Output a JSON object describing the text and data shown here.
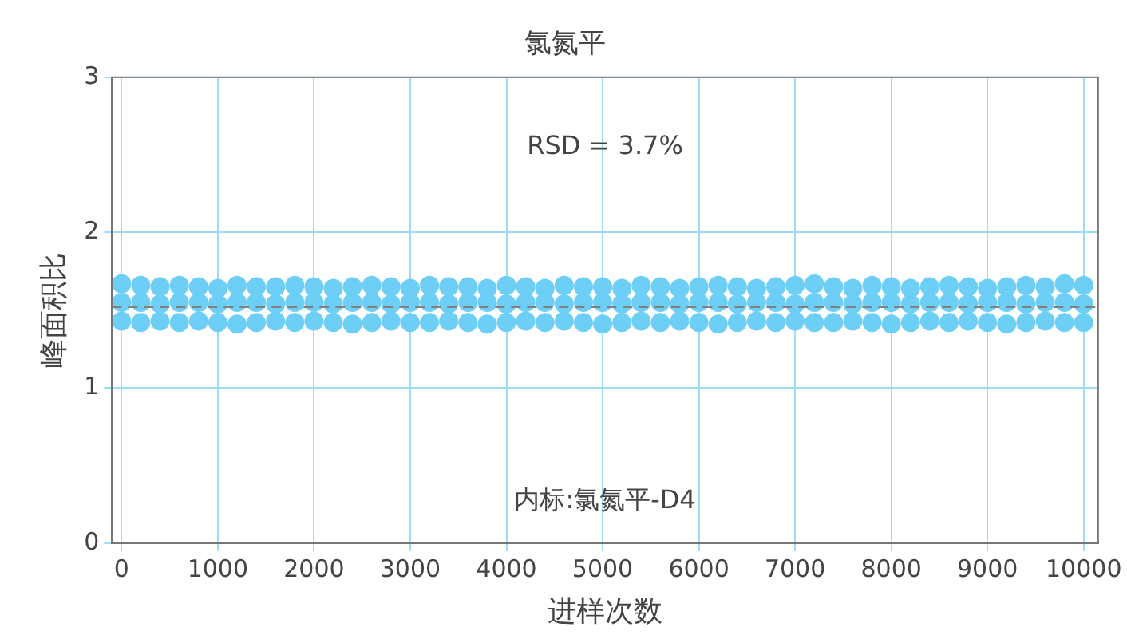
{
  "chart_data": {
    "type": "scatter",
    "title": "氯氮平",
    "xlabel": "进样次数",
    "ylabel": "峰面积比",
    "annotations": [
      "RSD = 3.7%",
      "内标:氯氮平-D4"
    ],
    "xlim": [
      -100,
      10150
    ],
    "xticks": [
      0,
      1000,
      2000,
      3000,
      4000,
      5000,
      6000,
      7000,
      8000,
      9000,
      10000
    ],
    "ylim": [
      0,
      3
    ],
    "yticks": [
      0,
      1,
      2,
      3
    ],
    "grid": true,
    "legend": false,
    "marker": "circle",
    "ref_lines": [
      {
        "axis": "y",
        "value": 1.52,
        "color": "#808080",
        "line_style": "dashed"
      }
    ],
    "series": [
      {
        "color": "#6dcff6",
        "x": [
          0,
          200,
          400,
          600,
          800,
          1000,
          1200,
          1400,
          1600,
          1800,
          2000,
          2200,
          2400,
          2600,
          2800,
          3000,
          3200,
          3400,
          3600,
          3800,
          4000,
          4200,
          4400,
          4600,
          4800,
          5000,
          5200,
          5400,
          5600,
          5800,
          6000,
          6200,
          6400,
          6600,
          6800,
          7000,
          7200,
          7400,
          7600,
          7800,
          8000,
          8200,
          8400,
          8600,
          8800,
          9000,
          9200,
          9400,
          9600,
          9800,
          10000,
          0,
          200,
          400,
          600,
          800,
          1000,
          1200,
          1400,
          1600,
          1800,
          2000,
          2200,
          2400,
          2600,
          2800,
          3000,
          3200,
          3400,
          3600,
          3800,
          4000,
          4200,
          4400,
          4600,
          4800,
          5000,
          5200,
          5400,
          5600,
          5800,
          6000,
          6200,
          6400,
          6600,
          6800,
          7000,
          7200,
          7400,
          7600,
          7800,
          8000,
          8200,
          8400,
          8600,
          8800,
          9000,
          9200,
          9400,
          9600,
          9800,
          10000,
          0,
          200,
          400,
          600,
          800,
          1000,
          1200,
          1400,
          1600,
          1800,
          2000,
          2200,
          2400,
          2600,
          2800,
          3000,
          3200,
          3400,
          3600,
          3800,
          4000,
          4200,
          4400,
          4600,
          4800,
          5000,
          5200,
          5400,
          5600,
          5800,
          6000,
          6200,
          6400,
          6600,
          6800,
          7000,
          7200,
          7400,
          7600,
          7800,
          8000,
          8200,
          8400,
          8600,
          8800,
          9000,
          9200,
          9400,
          9600,
          9800,
          10000
        ],
        "values": [
          1.67,
          1.66,
          1.65,
          1.66,
          1.65,
          1.64,
          1.66,
          1.65,
          1.65,
          1.66,
          1.65,
          1.64,
          1.65,
          1.66,
          1.65,
          1.64,
          1.66,
          1.65,
          1.65,
          1.64,
          1.66,
          1.65,
          1.64,
          1.66,
          1.65,
          1.65,
          1.64,
          1.66,
          1.65,
          1.64,
          1.65,
          1.66,
          1.65,
          1.64,
          1.65,
          1.66,
          1.67,
          1.65,
          1.64,
          1.66,
          1.65,
          1.64,
          1.65,
          1.66,
          1.65,
          1.64,
          1.65,
          1.66,
          1.65,
          1.67,
          1.66,
          1.55,
          1.55,
          1.54,
          1.55,
          1.55,
          1.54,
          1.55,
          1.55,
          1.54,
          1.55,
          1.55,
          1.54,
          1.55,
          1.55,
          1.54,
          1.55,
          1.55,
          1.54,
          1.55,
          1.55,
          1.54,
          1.55,
          1.55,
          1.54,
          1.55,
          1.55,
          1.54,
          1.55,
          1.55,
          1.54,
          1.55,
          1.55,
          1.54,
          1.55,
          1.55,
          1.54,
          1.55,
          1.55,
          1.54,
          1.55,
          1.55,
          1.54,
          1.55,
          1.55,
          1.54,
          1.55,
          1.55,
          1.54,
          1.55,
          1.55,
          1.54,
          1.43,
          1.42,
          1.43,
          1.42,
          1.43,
          1.42,
          1.41,
          1.42,
          1.43,
          1.42,
          1.43,
          1.42,
          1.41,
          1.42,
          1.43,
          1.42,
          1.42,
          1.43,
          1.42,
          1.41,
          1.42,
          1.43,
          1.42,
          1.43,
          1.42,
          1.41,
          1.42,
          1.43,
          1.42,
          1.43,
          1.42,
          1.41,
          1.42,
          1.43,
          1.42,
          1.43,
          1.42,
          1.42,
          1.43,
          1.42,
          1.41,
          1.42,
          1.43,
          1.42,
          1.43,
          1.42,
          1.41,
          1.42,
          1.43,
          1.42,
          1.42
        ]
      }
    ]
  }
}
